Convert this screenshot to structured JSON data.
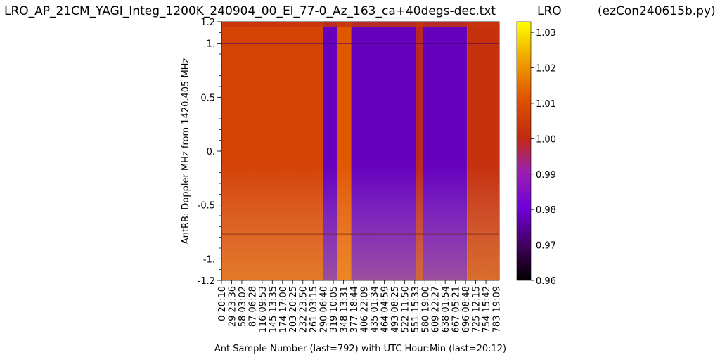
{
  "title_left": "LRO_AP_21CM_YAGI_Integ_1200K_240904_00_El_77-0_Az_163_ca+40degs-dec.txt",
  "title_mid": "LRO",
  "title_right": "(ezCon240615b.py)",
  "chart_data": {
    "type": "heatmap",
    "colormap": "gnuplot",
    "ylabel": "AntRB:  Doppler MHz from 1420.405 MHz",
    "xlabel": "Ant Sample Number (last=792) with UTC Hour:Min (last=20:12)",
    "ylim": [
      -1.2,
      1.2
    ],
    "yticks": [
      {
        "v": 1.2,
        "label": "1.2"
      },
      {
        "v": 1.0,
        "label": "1."
      },
      {
        "v": 0.5,
        "label": "0.5"
      },
      {
        "v": 0.0,
        "label": "0."
      },
      {
        "v": -0.5,
        "label": "-0.5"
      },
      {
        "v": -1.0,
        "label": "-1."
      },
      {
        "v": -1.2,
        "label": "-1.2"
      }
    ],
    "xlim": [
      0,
      792
    ],
    "xticks": [
      {
        "sample": 0,
        "label": "0  20:10"
      },
      {
        "sample": 29,
        "label": "29  23:36"
      },
      {
        "sample": 58,
        "label": "58  03:02"
      },
      {
        "sample": 87,
        "label": "87  06:28"
      },
      {
        "sample": 116,
        "label": "116  09:53"
      },
      {
        "sample": 145,
        "label": "145  13:35"
      },
      {
        "sample": 174,
        "label": "174  17:00"
      },
      {
        "sample": 203,
        "label": "203  20:25"
      },
      {
        "sample": 232,
        "label": "232  23:50"
      },
      {
        "sample": 261,
        "label": "261  03:15"
      },
      {
        "sample": 290,
        "label": "290  06:40"
      },
      {
        "sample": 319,
        "label": "319  10:05"
      },
      {
        "sample": 348,
        "label": "348  13:31"
      },
      {
        "sample": 377,
        "label": "377  18:44"
      },
      {
        "sample": 406,
        "label": "406  22:09"
      },
      {
        "sample": 435,
        "label": "435  01:34"
      },
      {
        "sample": 464,
        "label": "464  04:59"
      },
      {
        "sample": 493,
        "label": "493  08:25"
      },
      {
        "sample": 522,
        "label": "522  11:50"
      },
      {
        "sample": 551,
        "label": "551  15:33"
      },
      {
        "sample": 580,
        "label": "580  19:00"
      },
      {
        "sample": 609,
        "label": "609  22:27"
      },
      {
        "sample": 638,
        "label": "638  01:54"
      },
      {
        "sample": 667,
        "label": "667  05:21"
      },
      {
        "sample": 696,
        "label": "696  08:48"
      },
      {
        "sample": 725,
        "label": "725  12:15"
      },
      {
        "sample": 754,
        "label": "754  15:42"
      },
      {
        "sample": 783,
        "label": "783  19:09"
      }
    ],
    "colorbar": {
      "min": 0.96,
      "max": 1.033,
      "ticks": [
        {
          "v": 0.96,
          "label": "0.96"
        },
        {
          "v": 0.97,
          "label": "0.97"
        },
        {
          "v": 0.98,
          "label": "0.98"
        },
        {
          "v": 0.99,
          "label": "0.99"
        },
        {
          "v": 1.0,
          "label": "1.00"
        },
        {
          "v": 1.01,
          "label": "1.01"
        },
        {
          "v": 1.02,
          "label": "1.02"
        },
        {
          "v": 1.03,
          "label": "1.03"
        }
      ]
    },
    "regions": [
      {
        "x0": 0,
        "x1": 290,
        "value": 1.007
      },
      {
        "x0": 290,
        "x1": 330,
        "value": 0.978
      },
      {
        "x0": 330,
        "x1": 370,
        "value": 1.012
      },
      {
        "x0": 370,
        "x1": 555,
        "value": 0.978
      },
      {
        "x0": 555,
        "x1": 575,
        "value": 0.999
      },
      {
        "x0": 575,
        "x1": 700,
        "value": 0.978
      },
      {
        "x0": 700,
        "x1": 792,
        "value": 1.002
      }
    ]
  }
}
